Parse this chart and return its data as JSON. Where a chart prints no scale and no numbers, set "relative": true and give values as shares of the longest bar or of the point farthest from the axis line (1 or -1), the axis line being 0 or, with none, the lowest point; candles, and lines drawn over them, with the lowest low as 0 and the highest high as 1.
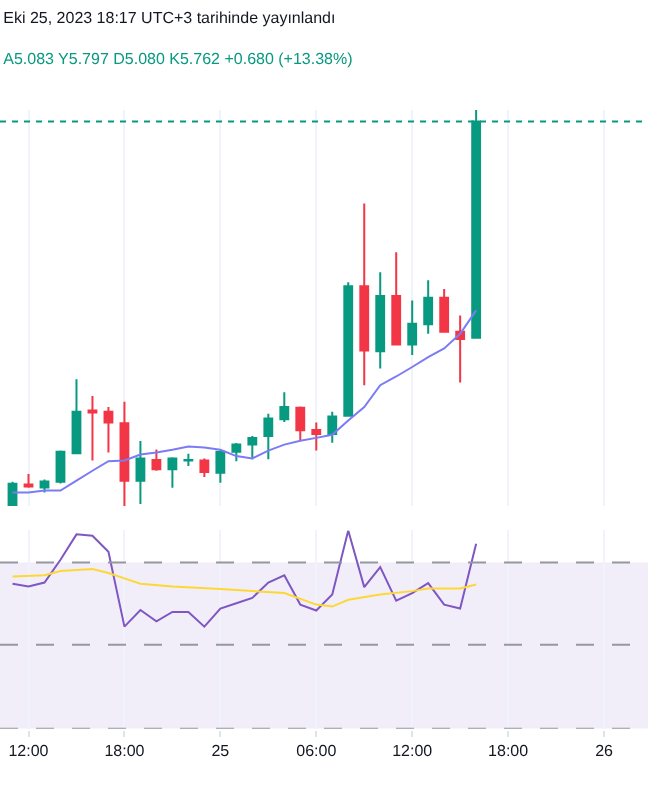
{
  "chart_data": [
    {
      "type": "candlestick",
      "title": "Eki 25, 2023 18:17 UTC+3 tarihinde yayınlandı",
      "subtitle": "A5.083 Y5.797 D5.080 K5.762 +0.680 (+13.38%)",
      "relative": true,
      "grid": "x",
      "tick_labels": false,
      "x": [
        "2023-10-24T11:00",
        "2023-10-24T12:00",
        "2023-10-24T13:00",
        "2023-10-24T14:00",
        "2023-10-24T15:00",
        "2023-10-24T16:00",
        "2023-10-24T17:00",
        "2023-10-24T18:00",
        "2023-10-24T19:00",
        "2023-10-24T20:00",
        "2023-10-24T21:00",
        "2023-10-24T22:00",
        "2023-10-24T23:00",
        "2023-10-25T00:00",
        "2023-10-25T01:00",
        "2023-10-25T02:00",
        "2023-10-25T03:00",
        "2023-10-25T04:00",
        "2023-10-25T05:00",
        "2023-10-25T06:00",
        "2023-10-25T07:00",
        "2023-10-25T08:00",
        "2023-10-25T09:00",
        "2023-10-25T10:00",
        "2023-10-25T11:00",
        "2023-10-25T12:00",
        "2023-10-25T13:00",
        "2023-10-25T14:00",
        "2023-10-25T15:00",
        "2023-10-25T16:00"
      ],
      "ohlc": [
        [
          0,
          0.061,
          0,
          0.056
        ],
        [
          0.054,
          0.081,
          0.046,
          0.049
        ],
        [
          0.047,
          0.067,
          0.034,
          0.062
        ],
        [
          0.061,
          0.14,
          0.057,
          0.137
        ],
        [
          0.133,
          0.32,
          0.132,
          0.238
        ],
        [
          0.241,
          0.278,
          0.115,
          0.236
        ],
        [
          0.238,
          0.25,
          0.135,
          0.211
        ],
        [
          0.209,
          0.263,
          0,
          0.064
        ],
        [
          0.064,
          0.164,
          0.005,
          0.12
        ],
        [
          0.116,
          0.143,
          0.089,
          0.093
        ],
        [
          0.093,
          0.123,
          0.046,
          0.12
        ],
        [
          0.115,
          0.132,
          0.101,
          0.116
        ],
        [
          0.115,
          0.12,
          0.073,
          0.086
        ],
        [
          0.084,
          0.14,
          0.059,
          0.137
        ],
        [
          0.137,
          0.159,
          0.113,
          0.155
        ],
        [
          0.155,
          0.177,
          0.118,
          0.172
        ],
        [
          0.177,
          0.233,
          0.118,
          0.221
        ],
        [
          0.219,
          0.287,
          0.212,
          0.25
        ],
        [
          0.248,
          0.251,
          0.165,
          0.191
        ],
        [
          0.192,
          0.211,
          0.14,
          0.182
        ],
        [
          0.182,
          0.238,
          0.16,
          0.226
        ],
        [
          0.228,
          0.565,
          0.226,
          0.555
        ],
        [
          0.555,
          0.764,
          0.305,
          0.393
        ],
        [
          0.391,
          0.59,
          0.347,
          0.53
        ],
        [
          0.53,
          0.641,
          0.405,
          0.408
        ],
        [
          0.408,
          0.519,
          0.381,
          0.46
        ],
        [
          0.459,
          0.57,
          0.435,
          0.526
        ],
        [
          0.526,
          0.548,
          0.438,
          0.44
        ],
        [
          0.44,
          0.481,
          0.312,
          0.422
        ],
        [
          0.425,
          1,
          0.423,
          0.971
        ]
      ],
      "colors": [
        "#089981",
        "#f23645",
        "#089981",
        "#089981",
        "#089981",
        "#f23645",
        "#f23645",
        "#f23645",
        "#089981",
        "#f23645",
        "#089981",
        "#089981",
        "#f23645",
        "#089981",
        "#089981",
        "#089981",
        "#089981",
        "#089981",
        "#f23645",
        "#f23645",
        "#089981",
        "#089981",
        "#f23645",
        "#089981",
        "#f23645",
        "#089981",
        "#089981",
        "#f23645",
        "#f23645",
        "#089981"
      ],
      "series": [
        {
          "type": "line",
          "color": "#7b7bf5",
          "values": [
            0.034,
            0.034,
            0.039,
            0.039,
            0.064,
            0.089,
            0.113,
            0.115,
            0.13,
            0.135,
            0.142,
            0.15,
            0.148,
            0.142,
            0.126,
            0.12,
            0.14,
            0.155,
            0.165,
            0.172,
            0.18,
            0.216,
            0.25,
            0.305,
            0.327,
            0.351,
            0.376,
            0.398,
            0.435,
            0.494
          ]
        }
      ],
      "ref_lines": [
        {
          "axis": "y",
          "value": 0.971,
          "label": null,
          "color": "#089981",
          "line_style": "dotted"
        }
      ],
      "xlim": [
        "2023-10-24T10:13",
        "2023-10-26T02:45"
      ],
      "xticks": [
        {
          "value": "2023-10-24T12:00",
          "label": null
        },
        {
          "value": "2023-10-24T18:00",
          "label": null
        },
        {
          "value": "2023-10-25T00:00",
          "label": null
        },
        {
          "value": "2023-10-25T06:00",
          "label": null
        },
        {
          "value": "2023-10-25T12:00",
          "label": null
        },
        {
          "value": "2023-10-25T18:00",
          "label": null
        },
        {
          "value": "2023-10-26T00:00",
          "label": null
        }
      ]
    },
    {
      "type": "line",
      "relative": true,
      "grid": "x",
      "x": [
        "2023-10-24T11:00",
        "2023-10-24T12:00",
        "2023-10-24T13:00",
        "2023-10-24T14:00",
        "2023-10-24T15:00",
        "2023-10-24T16:00",
        "2023-10-24T17:00",
        "2023-10-24T18:00",
        "2023-10-24T19:00",
        "2023-10-24T20:00",
        "2023-10-24T21:00",
        "2023-10-24T22:00",
        "2023-10-24T23:00",
        "2023-10-25T00:00",
        "2023-10-25T01:00",
        "2023-10-25T02:00",
        "2023-10-25T03:00",
        "2023-10-25T04:00",
        "2023-10-25T05:00",
        "2023-10-25T06:00",
        "2023-10-25T07:00",
        "2023-10-25T08:00",
        "2023-10-25T09:00",
        "2023-10-25T10:00",
        "2023-10-25T11:00",
        "2023-10-25T12:00",
        "2023-10-25T13:00",
        "2023-10-25T14:00",
        "2023-10-25T15:00",
        "2023-10-25T16:00"
      ],
      "series": [
        {
          "color": "#7e57c2",
          "values": [
            0.731,
            0.717,
            0.737,
            0.852,
            0.98,
            0.973,
            0.892,
            0.515,
            0.599,
            0.542,
            0.589,
            0.589,
            0.515,
            0.606,
            0.633,
            0.66,
            0.737,
            0.774,
            0.626,
            0.596,
            0.677,
            1,
            0.714,
            0.815,
            0.646,
            0.684,
            0.734,
            0.626,
            0.606,
            0.933
          ]
        },
        {
          "color": "#fdd835",
          "x": [
            "2023-10-24T11:00",
            "2023-10-24T13:00",
            "2023-10-24T14:00",
            "2023-10-24T16:00",
            "2023-10-24T17:00",
            "2023-10-24T18:00",
            "2023-10-24T19:00",
            "2023-10-24T21:00",
            "2023-10-25T00:00",
            "2023-10-25T02:00",
            "2023-10-25T04:00",
            "2023-10-25T06:00",
            "2023-10-25T07:00",
            "2023-10-25T08:00",
            "2023-10-25T10:00",
            "2023-10-25T12:00",
            "2023-10-25T13:00",
            "2023-10-25T15:00",
            "2023-10-25T16:00"
          ],
          "values": [
            0.768,
            0.774,
            0.795,
            0.805,
            0.785,
            0.758,
            0.731,
            0.717,
            0.704,
            0.694,
            0.684,
            0.626,
            0.616,
            0.65,
            0.677,
            0.694,
            0.707,
            0.707,
            0.727
          ]
        }
      ],
      "bands": [
        {
          "axis": "y",
          "from": 0,
          "to": 0.838,
          "label": null,
          "color": "#7e57c2"
        }
      ],
      "ref_lines": [
        {
          "axis": "y",
          "value": 0.838,
          "label": null,
          "color": "#9598a1",
          "line_style": "dashed"
        },
        {
          "axis": "y",
          "value": 0.424,
          "label": null,
          "color": "#9598a1",
          "line_style": "dashed"
        },
        {
          "axis": "y",
          "value": 0,
          "label": null,
          "color": "#9598a1",
          "line_style": "dashed"
        }
      ],
      "xlim": [
        "2023-10-24T10:13",
        "2023-10-26T02:45"
      ],
      "xticks": [
        {
          "value": "2023-10-24T12:00",
          "label": "12:00"
        },
        {
          "value": "2023-10-24T18:00",
          "label": "18:00"
        },
        {
          "value": "2023-10-25T00:00",
          "label": "25"
        },
        {
          "value": "2023-10-25T06:00",
          "label": "06:00"
        },
        {
          "value": "2023-10-25T12:00",
          "label": "12:00"
        },
        {
          "value": "2023-10-25T18:00",
          "label": "18:00"
        },
        {
          "value": "2023-10-26T00:00",
          "label": "26"
        }
      ]
    }
  ]
}
